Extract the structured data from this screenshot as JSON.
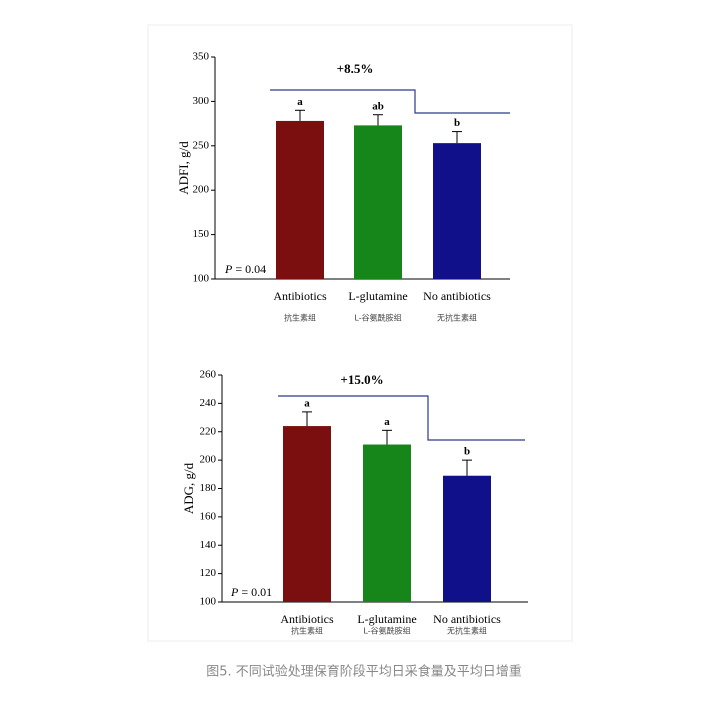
{
  "chart_data": [
    {
      "type": "bar",
      "ylabel": "ADFI, g/d",
      "categories": [
        "Antibiotics",
        "L-glutamine",
        "No antibiotics"
      ],
      "sublabels": [
        "抗生素组",
        "L-谷氨酰胺组",
        "无抗生素组"
      ],
      "values": [
        278,
        273,
        253
      ],
      "errors": [
        12,
        12,
        13
      ],
      "colors": [
        "#7b0e0e",
        "#17861a",
        "#10108a"
      ],
      "significance_letters": [
        "a",
        "ab",
        "b"
      ],
      "annotation": "+8.5%",
      "p_symbol": "P",
      "p_value": "= 0.04",
      "ylim": [
        100,
        350
      ],
      "yticks": [
        100,
        150,
        200,
        250,
        300,
        350
      ]
    },
    {
      "type": "bar",
      "ylabel": "ADG, g/d",
      "categories": [
        "Antibiotics",
        "L-glutamine",
        "No antibiotics"
      ],
      "sublabels": [
        "抗生素组",
        "L-谷氨酰胺组",
        "无抗生素组"
      ],
      "values": [
        224,
        211,
        189
      ],
      "errors": [
        10,
        10,
        11
      ],
      "colors": [
        "#7b0e0e",
        "#17861a",
        "#10108a"
      ],
      "significance_letters": [
        "a",
        "a",
        "b"
      ],
      "annotation": "+15.0%",
      "p_symbol": "P",
      "p_value": "= 0.01",
      "ylim": [
        100,
        260
      ],
      "yticks": [
        100,
        120,
        140,
        160,
        180,
        200,
        220,
        240,
        260
      ]
    }
  ],
  "caption": "图5. 不同试验处理保育阶段平均日采食量及平均日增重"
}
